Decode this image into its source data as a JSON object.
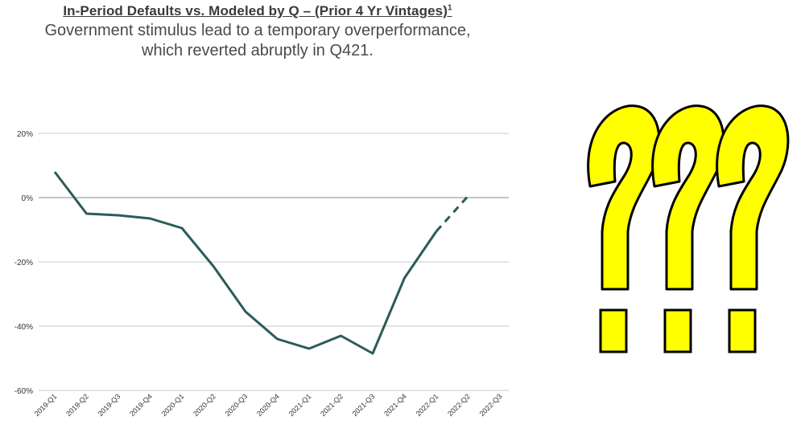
{
  "header": {
    "title": "In-Period Defaults vs. Modeled by Q – (Prior 4 Yr Vintages)",
    "title_footnote": "1",
    "subtitle_line1": "Government stimulus lead to a temporary overperformance,",
    "subtitle_line2": "which reverted abruptly in Q421."
  },
  "chart_data": {
    "type": "line",
    "categories": [
      "2019-Q1",
      "2019-Q2",
      "2019-Q3",
      "2019-Q4",
      "2020-Q1",
      "2020-Q2",
      "2020-Q3",
      "2020-Q4",
      "2021-Q1",
      "2021-Q2",
      "2021-Q3",
      "2021-Q4",
      "2022-Q1",
      "2022-Q2",
      "2022-Q3"
    ],
    "series": [
      {
        "values": [
          8,
          -5,
          -5.5,
          -6.5,
          -9.5,
          -21.5,
          -35.5,
          -44,
          -47,
          -43,
          -48.5,
          -25,
          -10.5,
          null,
          null
        ],
        "color": "#2a5c5a",
        "style": "solid"
      },
      {
        "values": [
          null,
          null,
          null,
          null,
          null,
          null,
          null,
          null,
          null,
          null,
          null,
          null,
          -10.5,
          0.5,
          null
        ],
        "color": "#2a5c5a",
        "style": "dashed"
      }
    ],
    "yticks": [
      "20%",
      "0%",
      "-20%",
      "-40%",
      "-60%"
    ],
    "ytick_values": [
      20,
      0,
      -20,
      -40,
      -60
    ],
    "ylim": [
      -60,
      20
    ],
    "grid": true
  },
  "decoration": {
    "question_marks_color": "#ffff00",
    "question_marks_outline": "#000000",
    "glyph_icon": "question-mark-icon",
    "count": 3
  }
}
